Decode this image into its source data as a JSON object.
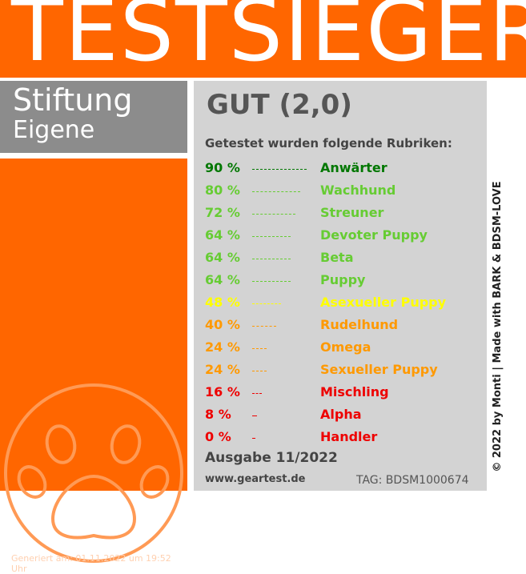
{
  "header": {
    "title": "TESTSIEGER"
  },
  "brand": {
    "line1": "Stiftung",
    "line2": "Eigene"
  },
  "footer_left": {
    "generated": "Generiert am: 01.11.2022 um 19:52 Uhr"
  },
  "result": {
    "grade": "GUT (2,0)",
    "subtitle": "Getestet wurden folgende Rubriken:",
    "items": [
      {
        "percent": "90 %",
        "label": "Anwärter",
        "value": 90,
        "color": "#007700"
      },
      {
        "percent": "80 %",
        "label": "Wachhund",
        "value": 80,
        "color": "#66cc33"
      },
      {
        "percent": "72 %",
        "label": "Streuner",
        "value": 72,
        "color": "#66cc33"
      },
      {
        "percent": "64 %",
        "label": "Devoter Puppy",
        "value": 64,
        "color": "#66cc33"
      },
      {
        "percent": "64 %",
        "label": "Beta",
        "value": 64,
        "color": "#66cc33"
      },
      {
        "percent": "64 %",
        "label": "Puppy",
        "value": 64,
        "color": "#66cc33"
      },
      {
        "percent": "48 %",
        "label": "Asexueller Puppy",
        "value": 48,
        "color": "#ffff00"
      },
      {
        "percent": "40 %",
        "label": "Rudelhund",
        "value": 40,
        "color": "#ff9900"
      },
      {
        "percent": "24 %",
        "label": "Omega",
        "value": 24,
        "color": "#ff9900"
      },
      {
        "percent": "24 %",
        "label": "Sexueller Puppy",
        "value": 24,
        "color": "#ff9900"
      },
      {
        "percent": "16 %",
        "label": "Mischling",
        "value": 16,
        "color": "#ee0000"
      },
      {
        "percent": "8 %",
        "label": "Alpha",
        "value": 8,
        "color": "#ee0000"
      },
      {
        "percent": "0 %",
        "label": "Handler",
        "value": 0,
        "color": "#ee0000"
      }
    ],
    "edition": "Ausgabe 11/2022",
    "website": "www.geartest.de",
    "tag": "TAG: BDSM1000674"
  },
  "side_text": "© 2022 by Monti | Made with BARK & BDSM-LOVE",
  "colors": {
    "brand_orange": "#ff6600",
    "panel_grey": "#8c8c8c",
    "card_grey": "#d3d3d3"
  },
  "icons": {
    "paw": "paw-print-icon"
  }
}
